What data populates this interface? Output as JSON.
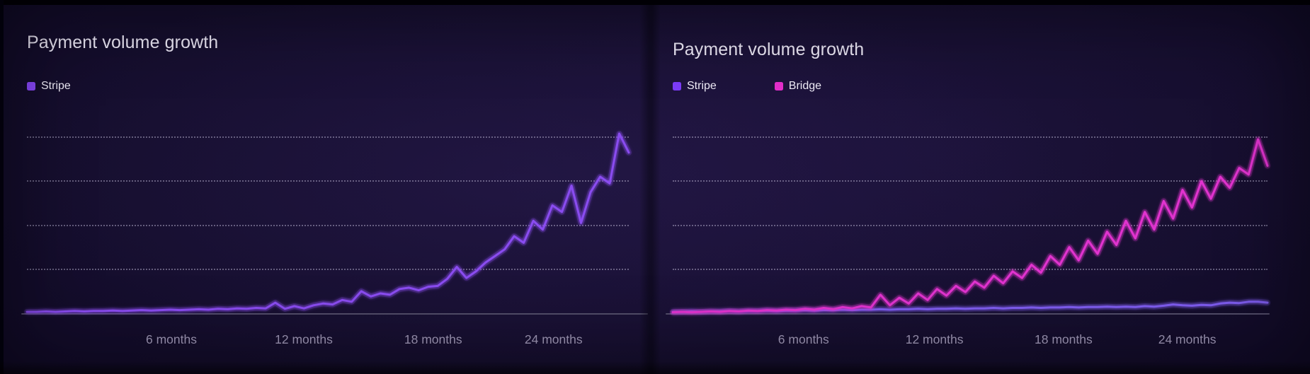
{
  "page": {
    "background": "#150e2d",
    "letterbox_color": "#020107"
  },
  "chart_data": [
    {
      "type": "line",
      "title": "Payment volume growth",
      "legend_position": "top-left",
      "grid": "horizontal-dotted",
      "y_axis": {
        "labeled": false,
        "note": "values in unlabeled gridline units; 4 dotted gridlines above solid baseline",
        "gridline_values": [
          1,
          2,
          3,
          4
        ],
        "ylim": [
          0,
          4.75
        ]
      },
      "x_axis": {
        "tick_labels": [
          "6 months",
          "12 months",
          "18 months",
          "24 months"
        ],
        "tick_positions_pct": [
          24,
          46,
          67.5,
          87.5
        ]
      },
      "series": [
        {
          "name": "Stripe",
          "swatch_color": "#8847f8",
          "line_color": "#8a4cf0",
          "values": [
            0.03,
            0.03,
            0.04,
            0.03,
            0.04,
            0.05,
            0.04,
            0.05,
            0.05,
            0.06,
            0.05,
            0.06,
            0.07,
            0.06,
            0.07,
            0.08,
            0.07,
            0.08,
            0.09,
            0.08,
            0.1,
            0.09,
            0.11,
            0.1,
            0.12,
            0.11,
            0.24,
            0.1,
            0.16,
            0.11,
            0.18,
            0.22,
            0.2,
            0.3,
            0.26,
            0.5,
            0.38,
            0.45,
            0.42,
            0.55,
            0.58,
            0.52,
            0.6,
            0.62,
            0.78,
            1.05,
            0.8,
            0.95,
            1.15,
            1.3,
            1.45,
            1.75,
            1.6,
            2.1,
            1.9,
            2.45,
            2.3,
            2.9,
            2.05,
            2.75,
            3.1,
            2.95,
            4.08,
            3.65
          ]
        }
      ]
    },
    {
      "type": "line",
      "title": "Payment volume growth",
      "legend_position": "top-left",
      "grid": "horizontal-dotted",
      "y_axis": {
        "labeled": false,
        "note": "values in unlabeled gridline units; 4 dotted gridlines above solid baseline",
        "gridline_values": [
          1,
          2,
          3,
          4
        ],
        "ylim": [
          0,
          4.75
        ]
      },
      "x_axis": {
        "tick_labels": [
          "6 months",
          "12 months",
          "18 months",
          "24 months"
        ],
        "tick_positions_pct": [
          22,
          44,
          65.7,
          86.5
        ]
      },
      "series": [
        {
          "name": "Stripe",
          "swatch_color": "#7c3cf8",
          "line_color": "#7e5cee",
          "values": [
            0.03,
            0.03,
            0.04,
            0.03,
            0.04,
            0.04,
            0.05,
            0.04,
            0.05,
            0.05,
            0.06,
            0.05,
            0.06,
            0.06,
            0.07,
            0.06,
            0.07,
            0.07,
            0.08,
            0.07,
            0.08,
            0.08,
            0.09,
            0.08,
            0.09,
            0.09,
            0.1,
            0.09,
            0.1,
            0.1,
            0.11,
            0.1,
            0.11,
            0.11,
            0.12,
            0.11,
            0.12,
            0.12,
            0.13,
            0.12,
            0.13,
            0.13,
            0.14,
            0.13,
            0.14,
            0.14,
            0.15,
            0.14,
            0.15,
            0.14,
            0.16,
            0.15,
            0.17,
            0.2,
            0.18,
            0.17,
            0.19,
            0.18,
            0.22,
            0.24,
            0.23,
            0.26,
            0.26,
            0.24
          ]
        },
        {
          "name": "Bridge",
          "swatch_color": "#e32ecb",
          "line_color": "#e133cf",
          "values": [
            0.02,
            0.03,
            0.02,
            0.03,
            0.04,
            0.03,
            0.05,
            0.04,
            0.06,
            0.05,
            0.07,
            0.06,
            0.08,
            0.07,
            0.1,
            0.08,
            0.12,
            0.09,
            0.14,
            0.11,
            0.16,
            0.13,
            0.42,
            0.18,
            0.35,
            0.22,
            0.45,
            0.3,
            0.55,
            0.4,
            0.62,
            0.48,
            0.72,
            0.58,
            0.85,
            0.68,
            0.95,
            0.8,
            1.1,
            0.92,
            1.3,
            1.1,
            1.5,
            1.2,
            1.65,
            1.35,
            1.85,
            1.55,
            2.1,
            1.7,
            2.3,
            1.9,
            2.55,
            2.15,
            2.8,
            2.4,
            3.0,
            2.6,
            3.1,
            2.85,
            3.3,
            3.15,
            3.95,
            3.35
          ]
        }
      ]
    }
  ]
}
